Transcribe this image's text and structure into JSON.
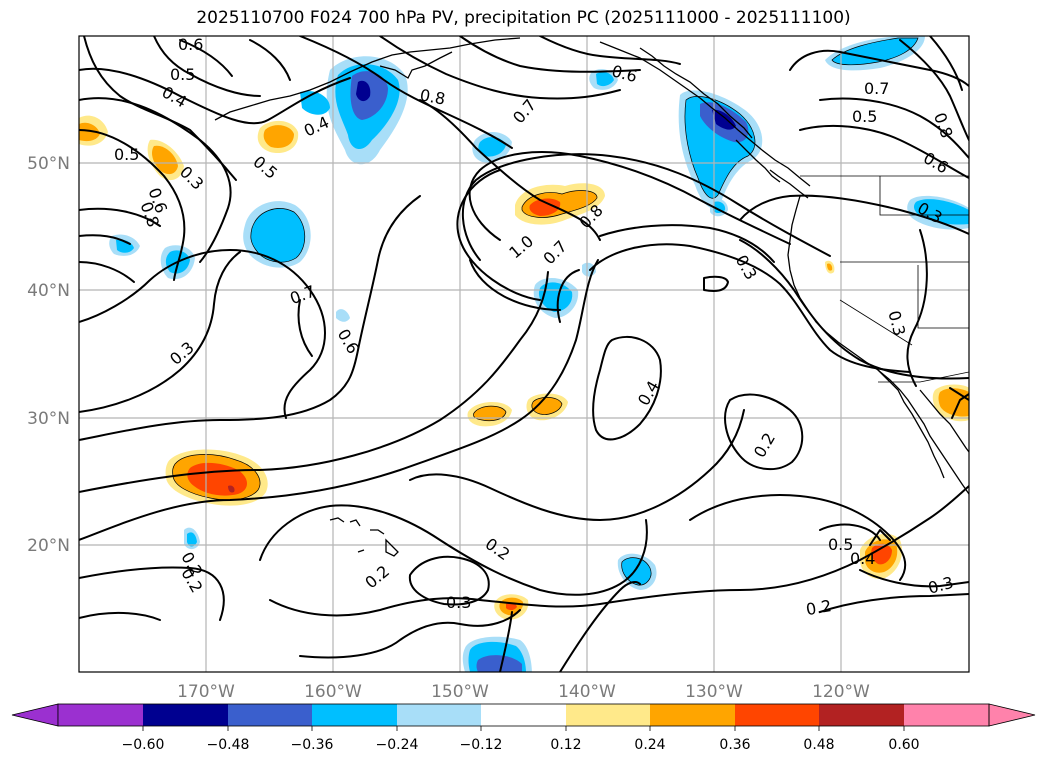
{
  "title": "2025110700 F024 700 hPa PV, precipitation PC (2025111000 - 2025111100)",
  "map": {
    "extent": {
      "lon_min": -180,
      "lon_max": -110,
      "lat_min": 10,
      "lat_max": 60
    },
    "lon_ticks": [
      {
        "lon": -170,
        "label": "170°W"
      },
      {
        "lon": -160,
        "label": "160°W"
      },
      {
        "lon": -150,
        "label": "150°W"
      },
      {
        "lon": -140,
        "label": "140°W"
      },
      {
        "lon": -130,
        "label": "130°W"
      },
      {
        "lon": -120,
        "label": "120°W"
      }
    ],
    "lat_ticks": [
      {
        "lat": 50,
        "label": "50°N"
      },
      {
        "lat": 40,
        "label": "40°N"
      },
      {
        "lat": 30,
        "label": "30°N"
      },
      {
        "lat": 20,
        "label": "20°N"
      }
    ],
    "grid": true,
    "contour_labels": [
      "0.6",
      "0.5",
      "0.4",
      "0.5",
      "0.3",
      "0.6",
      "0.8",
      "0.4",
      "0.5",
      "0.8",
      "0.7",
      "0.6",
      "0.7",
      "0.5",
      "0.8",
      "0.6",
      "0.3",
      "1.0",
      "0.7",
      "0.8",
      "0.3",
      "0.3",
      "0.7",
      "0.6",
      "0.3",
      "0.4",
      "0.2",
      "0.2",
      "0.2",
      "0.3",
      "0.2",
      "0.5",
      "0.4",
      "0.3",
      "0.2",
      "0.2"
    ]
  },
  "colorbar": {
    "ticks": [
      "−0.60",
      "−0.48",
      "−0.36",
      "−0.24",
      "−0.12",
      "0.12",
      "0.24",
      "0.36",
      "0.48",
      "0.60"
    ],
    "colors": [
      "#9b30d0",
      "#000090",
      "#3a5fcd",
      "#00bfff",
      "#a8def8",
      "#ffffff",
      "#ffe98a",
      "#ffa500",
      "#ff4500",
      "#b22222",
      "#ff82ab"
    ]
  },
  "fill_colors": {
    "light_blue": "#a8def8",
    "blue": "#00bfff",
    "dark_blue": "#3a5fcd",
    "navy": "#000090",
    "yellow": "#ffe98a",
    "orange": "#ffa500",
    "red": "#ff4500",
    "dark_red": "#b22222"
  }
}
